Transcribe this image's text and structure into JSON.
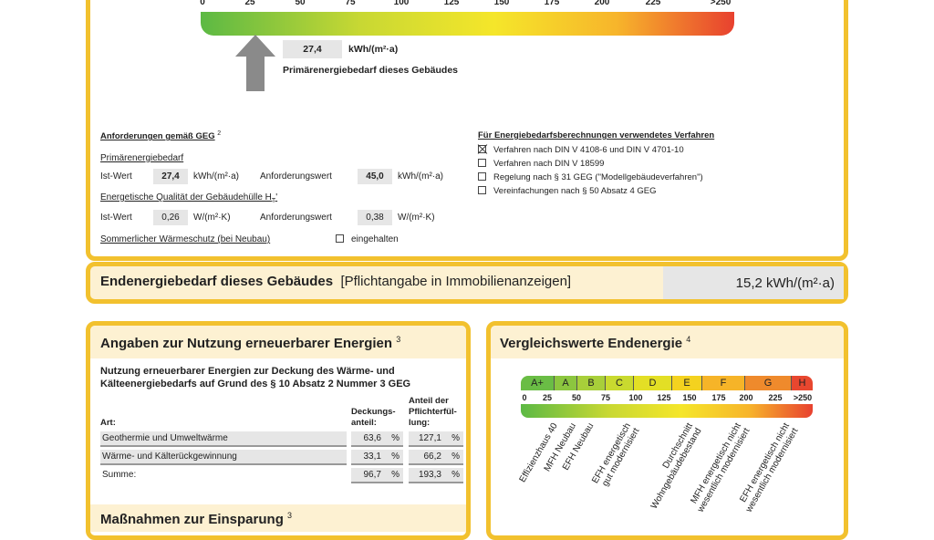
{
  "scale": {
    "ticks": [
      "0",
      "25",
      "50",
      "75",
      "100",
      "125",
      "150",
      "175",
      "200",
      "225",
      ">250"
    ],
    "marker_value": 27.4,
    "value": "27,4",
    "unit": "kWh/(m²·a)",
    "label": "Primärenergiebedarf dieses Gebäudes",
    "gradient": [
      "#5cb944",
      "#c8d833",
      "#f5e62a",
      "#f7b52b",
      "#e8412f"
    ]
  },
  "requirements": {
    "title": "Anforderungen gemäß GEG",
    "sup": "2",
    "primary_label": "Primärenergiebedarf",
    "ist": "Ist-Wert",
    "anf": "Anforderungswert",
    "primary_ist": "27,4",
    "primary_anf": "45,0",
    "unit_energy": "kWh/(m²·a)",
    "envelope_label": "Energetische Qualität der Gebäudehülle H",
    "envelope_sub": "T",
    "envelope_prime": "'",
    "envelope_ist": "0,26",
    "envelope_anf": "0,38",
    "unit_u": "W/(m²·K)",
    "summer_label": "Sommerlicher Wärmeschutz (bei Neubau)",
    "summer_check": "eingehalten"
  },
  "method": {
    "title": "Für Energiebedarfsberechnungen verwendetes Verfahren",
    "options": [
      {
        "label": "Verfahren nach DIN V 4108-6 und DIN V 4701-10",
        "checked": true
      },
      {
        "label": "Verfahren nach DIN V 18599",
        "checked": false
      },
      {
        "label": "Regelung nach § 31 GEG (\"Modellgebäudeverfahren\")",
        "checked": false
      },
      {
        "label": "Vereinfachungen nach § 50 Absatz 4 GEG",
        "checked": false
      }
    ]
  },
  "final": {
    "title": "Endenergiebedarf dieses Gebäudes",
    "note": "[Pflichtangabe in Immobilienanzeigen]",
    "value": "15,2 kWh/(m²·a)"
  },
  "renewable": {
    "title": "Angaben zur Nutzung erneuerbarer Energien",
    "sup": "3",
    "subtitle1": "Nutzung erneuerbarer Energien zur Deckung des Wärme- und",
    "subtitle2": "Kälteenergiebedarfs auf Grund des § 10 Absatz 2 Nummer 3 GEG",
    "col_art": "Art:",
    "col_deck1": "Deckungs-",
    "col_deck2": "anteil:",
    "col_pf1": "Anteil der",
    "col_pf2": "Pflichterfül-",
    "col_pf3": "lung:",
    "pct": "%",
    "rows": [
      {
        "art": "Geothermie und Umweltwärme",
        "deck": "63,6",
        "pf": "127,1"
      },
      {
        "art": "Wärme- und Kälterückgewinnung",
        "deck": "33,1",
        "pf": "66,2"
      },
      {
        "art": "Summe:",
        "deck": "96,7",
        "pf": "193,3"
      }
    ]
  },
  "savings": {
    "title": "Maßnahmen zur Einsparung",
    "sup": "3"
  },
  "compare": {
    "title": "Vergleichswerte Endenergie",
    "sup": "4",
    "classes": [
      "A+",
      "A",
      "B",
      "C",
      "D",
      "E",
      "F",
      "G",
      "H"
    ],
    "class_colors": [
      "#6abd45",
      "#8cc63f",
      "#a8cf3a",
      "#c9da2f",
      "#e3df25",
      "#f4d21f",
      "#f6b428",
      "#ef8a2c",
      "#e8472f"
    ],
    "ticks": [
      "0",
      "25",
      "50",
      "75",
      "100",
      "125",
      "150",
      "175",
      "200",
      "225",
      ">250"
    ],
    "refs": [
      "Effizienzhaus 40",
      "MFH Neubau",
      "EFH Neubau",
      "EFH energetisch\ngut modernisiert",
      "Durchschnitt\nWohngebäudebestand",
      "MFH energetisch nicht\nwesentlich modernisiert",
      "EFH energetisch nicht\nwesentlich modernisiert"
    ]
  },
  "colors": {
    "border": "#f2c12e",
    "cream": "#fdf1d2",
    "marker": "#8a8a8a"
  }
}
